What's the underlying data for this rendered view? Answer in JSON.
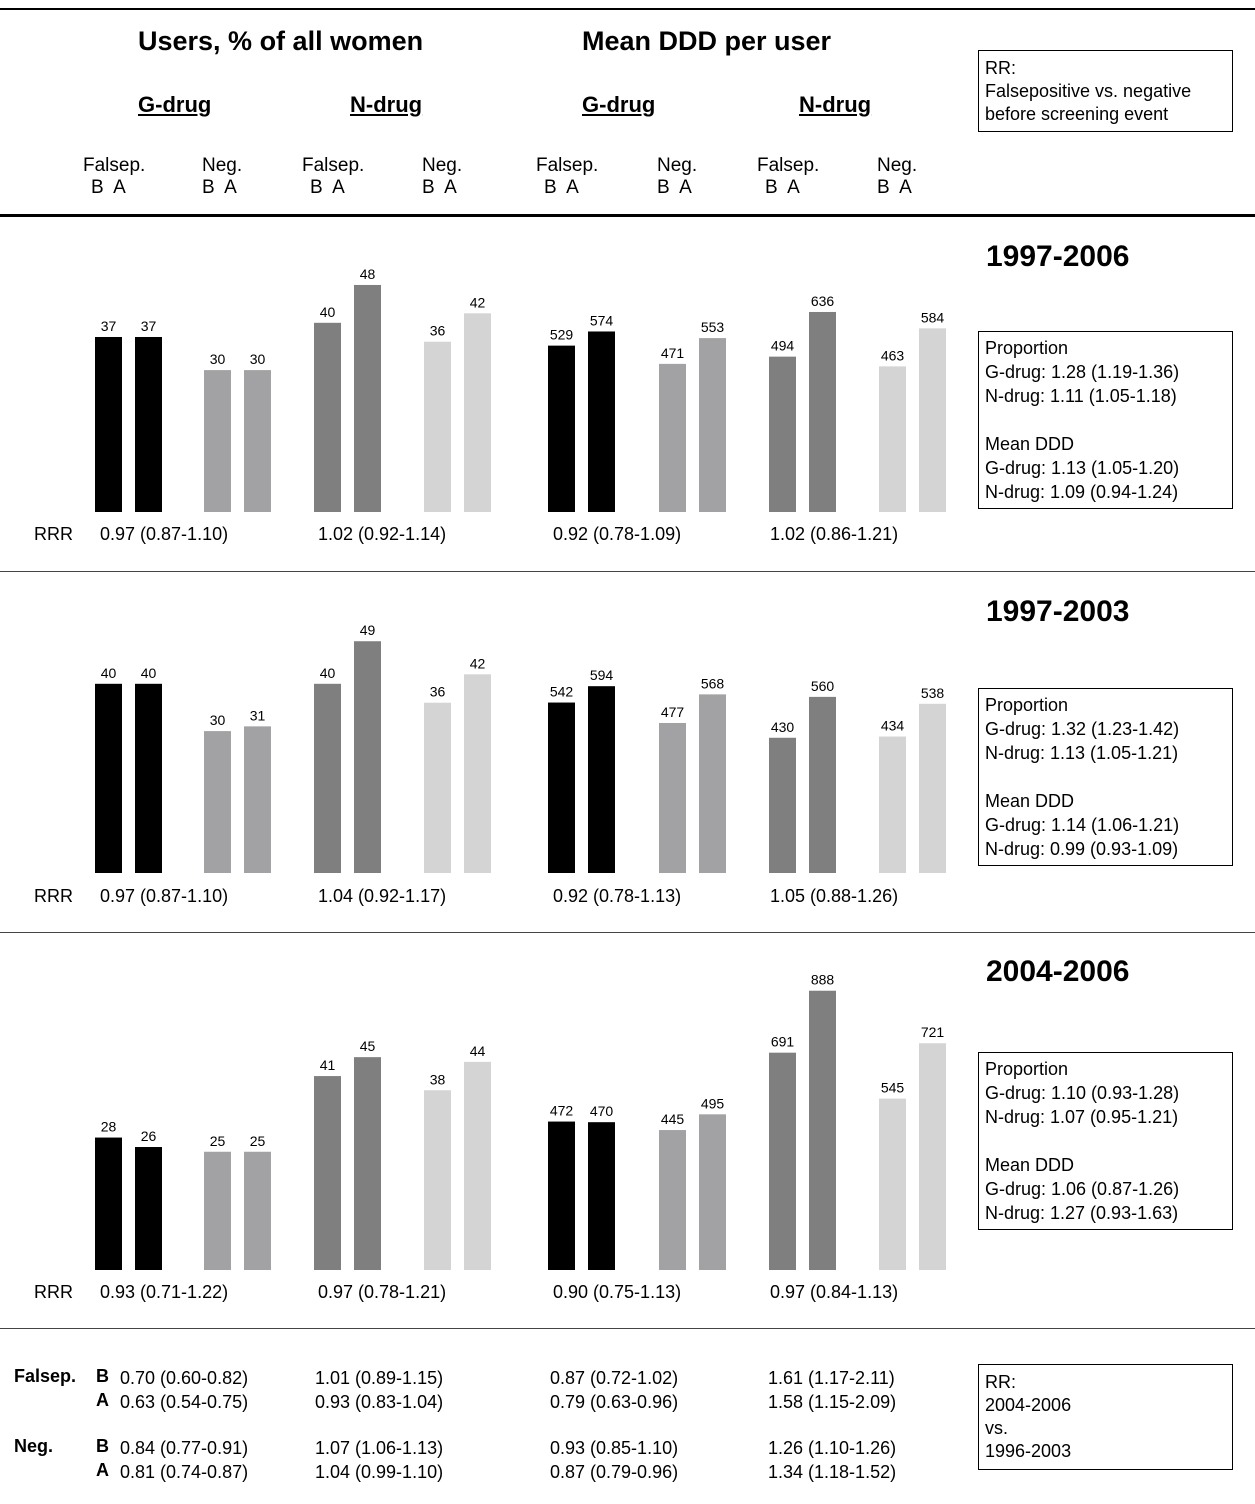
{
  "header": {
    "users_title": "Users, % of all women",
    "ddd_title": "Mean DDD per user",
    "drug_labels": [
      "G-drug",
      "N-drug",
      "G-drug",
      "N-drug"
    ],
    "group_labels": [
      "Falsep.",
      "Neg.",
      "Falsep.",
      "Neg.",
      "Falsep.",
      "Neg.",
      "Falsep.",
      "Neg."
    ],
    "ba_label": "B  A",
    "rr_box": [
      "RR:",
      "Falsepositive vs. negative",
      "before screening event"
    ]
  },
  "colors": {
    "falsep_g": "#000000",
    "neg_g": "#a2a2a4",
    "falsep_n": "#7f7f7f",
    "neg_n": "#d4d4d4"
  },
  "chart_data": [
    {
      "type": "bar",
      "period": "1997-2006",
      "panels": [
        {
          "series": [
            {
              "name": "Falsep.",
              "values": [
                37,
                37
              ]
            },
            {
              "name": "Neg.",
              "values": [
                30,
                30
              ]
            }
          ]
        },
        {
          "series": [
            {
              "name": "Falsep.",
              "values": [
                40,
                48
              ]
            },
            {
              "name": "Neg.",
              "values": [
                36,
                42
              ]
            }
          ]
        },
        {
          "series": [
            {
              "name": "Falsep.",
              "values": [
                529,
                574
              ]
            },
            {
              "name": "Neg.",
              "values": [
                471,
                553
              ]
            }
          ]
        },
        {
          "series": [
            {
              "name": "Falsep.",
              "values": [
                494,
                636
              ]
            },
            {
              "name": "Neg.",
              "values": [
                463,
                584
              ]
            }
          ]
        }
      ],
      "rrr_label": "RRR",
      "rrr": [
        "0.97 (0.87-1.10)",
        "1.02 (0.92-1.14)",
        "0.92 (0.78-1.09)",
        "1.02 (0.86-1.21)"
      ],
      "box": [
        "Proportion",
        "G-drug: 1.28 (1.19-1.36)",
        "N-drug: 1.11 (1.05-1.18)",
        "",
        "Mean DDD",
        "G-drug: 1.13 (1.05-1.20)",
        "N-drug: 1.09 (0.94-1.24)"
      ]
    },
    {
      "type": "bar",
      "period": "1997-2003",
      "panels": [
        {
          "series": [
            {
              "name": "Falsep.",
              "values": [
                40,
                40
              ]
            },
            {
              "name": "Neg.",
              "values": [
                30,
                31
              ]
            }
          ]
        },
        {
          "series": [
            {
              "name": "Falsep.",
              "values": [
                40,
                49
              ]
            },
            {
              "name": "Neg.",
              "values": [
                36,
                42
              ]
            }
          ]
        },
        {
          "series": [
            {
              "name": "Falsep.",
              "values": [
                542,
                594
              ]
            },
            {
              "name": "Neg.",
              "values": [
                477,
                568
              ]
            }
          ]
        },
        {
          "series": [
            {
              "name": "Falsep.",
              "values": [
                430,
                560
              ]
            },
            {
              "name": "Neg.",
              "values": [
                434,
                538
              ]
            }
          ]
        }
      ],
      "rrr_label": "RRR",
      "rrr": [
        "0.97 (0.87-1.10)",
        "1.04 (0.92-1.17)",
        "0.92 (0.78-1.13)",
        "1.05 (0.88-1.26)"
      ],
      "box": [
        "Proportion",
        "G-drug: 1.32 (1.23-1.42)",
        "N-drug: 1.13 (1.05-1.21)",
        "",
        "Mean DDD",
        "G-drug: 1.14 (1.06-1.21)",
        "N-drug: 0.99 (0.93-1.09)"
      ]
    },
    {
      "type": "bar",
      "period": "2004-2006",
      "panels": [
        {
          "series": [
            {
              "name": "Falsep.",
              "values": [
                28,
                26
              ]
            },
            {
              "name": "Neg.",
              "values": [
                25,
                25
              ]
            }
          ]
        },
        {
          "series": [
            {
              "name": "Falsep.",
              "values": [
                41,
                45
              ]
            },
            {
              "name": "Neg.",
              "values": [
                38,
                44
              ]
            }
          ]
        },
        {
          "series": [
            {
              "name": "Falsep.",
              "values": [
                472,
                470
              ]
            },
            {
              "name": "Neg.",
              "values": [
                445,
                495
              ]
            }
          ]
        },
        {
          "series": [
            {
              "name": "Falsep.",
              "values": [
                691,
                888
              ]
            },
            {
              "name": "Neg.",
              "values": [
                545,
                721
              ]
            }
          ]
        }
      ],
      "rrr_label": "RRR",
      "rrr": [
        "0.93 (0.71-1.22)",
        "0.97 (0.78-1.21)",
        "0.90 (0.75-1.13)",
        "0.97 (0.84-1.13)"
      ],
      "box": [
        "Proportion",
        "G-drug: 1.10 (0.93-1.28)",
        "N-drug: 1.07 (0.95-1.21)",
        "",
        "Mean DDD",
        "G-drug: 1.06 (0.87-1.26)",
        "N-drug: 1.27 (0.93-1.63)"
      ]
    }
  ],
  "bottom": {
    "falsep_label": "Falsep.",
    "neg_label": "Neg.",
    "b": "B",
    "a": "A",
    "rows": [
      [
        "0.70 (0.60-0.82)",
        "1.01 (0.89-1.15)",
        "0.87 (0.72-1.02)",
        "1.61 (1.17-2.11)"
      ],
      [
        "0.63 (0.54-0.75)",
        "0.93 (0.83-1.04)",
        "0.79 (0.63-0.96)",
        "1.58 (1.15-2.09)"
      ],
      [
        "0.84 (0.77-0.91)",
        "1.07 (1.06-1.13)",
        "0.93 (0.85-1.10)",
        "1.26 (1.10-1.26)"
      ],
      [
        "0.81 (0.74-0.87)",
        "1.04 (0.99-1.10)",
        "0.87 (0.79-0.96)",
        "1.34 (1.18-1.52)"
      ]
    ],
    "rr_box": [
      "RR:",
      "2004-2006",
      "vs.",
      "1996-2003"
    ]
  }
}
